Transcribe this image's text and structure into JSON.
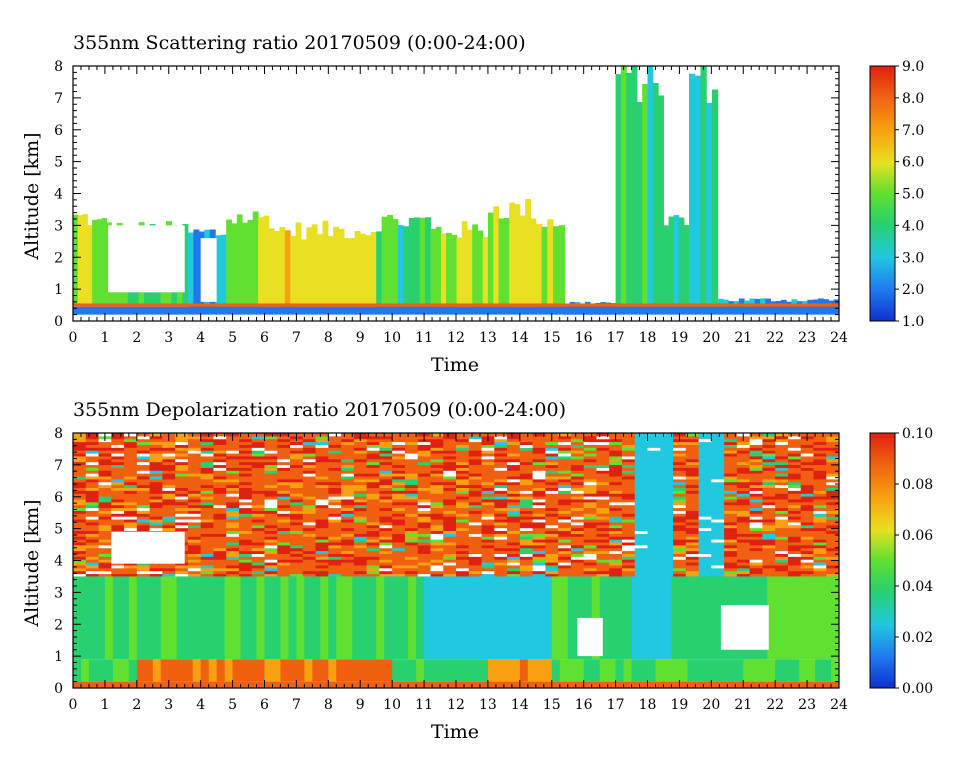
{
  "chart_data": [
    {
      "type": "heatmap",
      "title": "355nm Scattering ratio  20170509 (0:00-24:00)",
      "xlabel": "Time",
      "ylabel": "Altitude [km]",
      "xlim": [
        0,
        24
      ],
      "ylim": [
        0,
        8
      ],
      "x_ticks": [
        "0",
        "1",
        "2",
        "3",
        "4",
        "5",
        "6",
        "7",
        "8",
        "9",
        "10",
        "11",
        "12",
        "13",
        "14",
        "15",
        "16",
        "17",
        "18",
        "19",
        "20",
        "21",
        "22",
        "23",
        "24"
      ],
      "y_ticks": [
        "0",
        "1",
        "2",
        "3",
        "4",
        "5",
        "6",
        "7",
        "8"
      ],
      "colorbar": {
        "range": [
          1.0,
          9.0
        ],
        "ticks": [
          "1.0",
          "2.0",
          "3.0",
          "4.0",
          "5.0",
          "6.0",
          "7.0",
          "8.0",
          "9.0"
        ]
      },
      "colors": {
        "low": "#1f3fe0",
        "mid": "#2fd060",
        "high": "#e02a10",
        "missing": "#ffffff"
      }
    },
    {
      "type": "heatmap",
      "title": "355nm Depolarization ratio  20170509 (0:00-24:00)",
      "xlabel": "Time",
      "ylabel": "Altitude [km]",
      "xlim": [
        0,
        24
      ],
      "ylim": [
        0,
        8
      ],
      "x_ticks": [
        "0",
        "1",
        "2",
        "3",
        "4",
        "5",
        "6",
        "7",
        "8",
        "9",
        "10",
        "11",
        "12",
        "13",
        "14",
        "15",
        "16",
        "17",
        "18",
        "19",
        "20",
        "21",
        "22",
        "23",
        "24"
      ],
      "y_ticks": [
        "0",
        "1",
        "2",
        "3",
        "4",
        "5",
        "6",
        "7",
        "8"
      ],
      "colorbar": {
        "range": [
          0.0,
          0.1
        ],
        "ticks": [
          "0.00",
          "0.02",
          "0.04",
          "0.06",
          "0.08",
          "0.10"
        ]
      },
      "colors": {
        "low": "#1f3fe0",
        "mid": "#2fd060",
        "high": "#e02a10",
        "missing": "#ffffff"
      }
    }
  ]
}
